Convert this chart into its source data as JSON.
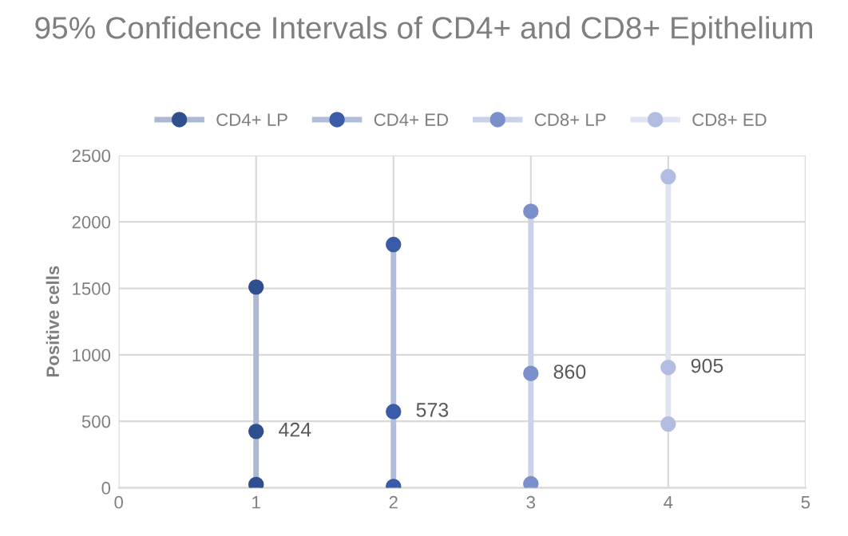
{
  "chart_data": {
    "type": "line",
    "title": "95% Confidence Intervals of CD4+ and CD8+ Epithelium",
    "ylabel": "Positive cells",
    "xlim": [
      0,
      5
    ],
    "xticks": [
      0,
      1,
      2,
      3,
      4,
      5
    ],
    "ylim": [
      0,
      2500
    ],
    "yticks": [
      0,
      500,
      1000,
      1500,
      2000,
      2500
    ],
    "grid": true,
    "legend": "top",
    "marker": "circle",
    "line_style": "solid",
    "series": [
      {
        "name": "CD4+ LP",
        "color": "#2f4f8f",
        "x": [
          1,
          1,
          1
        ],
        "values": [
          25,
          424,
          1510
        ],
        "value_labels": [
          null,
          "424",
          null
        ]
      },
      {
        "name": "CD4+ ED",
        "color": "#3a5ca8",
        "x": [
          2,
          2,
          2
        ],
        "values": [
          10,
          573,
          1830
        ],
        "value_labels": [
          null,
          "573",
          null
        ]
      },
      {
        "name": "CD8+ LP",
        "color": "#7b8fcb",
        "x": [
          3,
          3,
          3
        ],
        "values": [
          30,
          860,
          2080
        ],
        "value_labels": [
          null,
          "860",
          null
        ]
      },
      {
        "name": "CD8+ ED",
        "color": "#b3bde2",
        "x": [
          4,
          4,
          4
        ],
        "values": [
          480,
          905,
          2340
        ],
        "value_labels": [
          null,
          "905",
          null
        ]
      }
    ]
  }
}
